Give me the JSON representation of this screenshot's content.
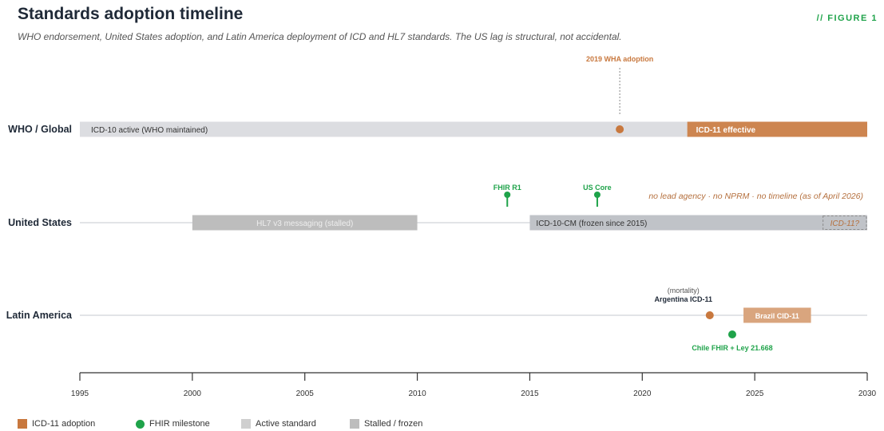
{
  "header": {
    "title": "Standards adoption timeline",
    "subtitle": "WHO endorsement, United States adoption, and Latin America deployment of ICD and HL7 standards. The US lag is structural, not accidental.",
    "tag": "// FIGURE 1"
  },
  "chart_data": {
    "type": "timeline",
    "xlim": [
      1995,
      2030
    ],
    "xticks": [
      1995,
      2000,
      2005,
      2010,
      2015,
      2020,
      2025,
      2030
    ],
    "rows": [
      {
        "label": "WHO / Global",
        "bars": [
          {
            "label": "ICD-10 active (WHO maintained)",
            "start": 1995,
            "end": 2022,
            "kind": "active"
          },
          {
            "label": "ICD-11 effective",
            "start": 2022,
            "end": 2030,
            "kind": "icd11"
          }
        ],
        "points": [
          {
            "label": "2019 WHA adoption",
            "x": 2019,
            "kind": "icd11",
            "callout": "dashed"
          }
        ]
      },
      {
        "label": "United States",
        "bars": [
          {
            "label": "HL7 v3 messaging (stalled)",
            "start": 2000,
            "end": 2010,
            "kind": "stalled"
          },
          {
            "label": "ICD-10-CM (frozen since 2015)",
            "start": 2015,
            "end": 2030,
            "kind": "frozen"
          },
          {
            "label": "ICD-11?",
            "start": 2028,
            "end": 2030,
            "kind": "pending"
          }
        ],
        "points": [
          {
            "label": "FHIR R1",
            "x": 2014,
            "kind": "fhir"
          },
          {
            "label": "US Core",
            "x": 2018,
            "kind": "fhir"
          }
        ],
        "note": "no lead agency · no NPRM · no timeline (as of April 2026)"
      },
      {
        "label": "Latin America",
        "bars": [
          {
            "label": "Brazil CID-11",
            "start": 2024.5,
            "end": 2027.5,
            "kind": "icd11-light"
          }
        ],
        "points": [
          {
            "label": "Argentina ICD-11",
            "sublabel": "(mortality)",
            "x": 2023,
            "kind": "icd11"
          },
          {
            "label": "Chile FHIR + Ley 21.668",
            "x": 2024,
            "kind": "fhir"
          }
        ]
      }
    ],
    "legend": [
      {
        "label": "ICD-11 adoption",
        "color": "#c8783e",
        "shape": "square"
      },
      {
        "label": "FHIR milestone",
        "color": "#1fa34a",
        "shape": "circle"
      },
      {
        "label": "Active standard",
        "color": "#cfcfcf",
        "shape": "square"
      },
      {
        "label": "Stalled / frozen",
        "color": "#bdbdbd",
        "shape": "square"
      }
    ],
    "colors": {
      "icd11": "#cd8550",
      "icd11_point": "#c8783e",
      "icd11_light": "#d9a57e",
      "fhir": "#1fa34a",
      "active": "#dcdde1",
      "stalled": "#bdbdbd",
      "frozen": "#c0c3c8",
      "note": "#b5703e"
    }
  }
}
